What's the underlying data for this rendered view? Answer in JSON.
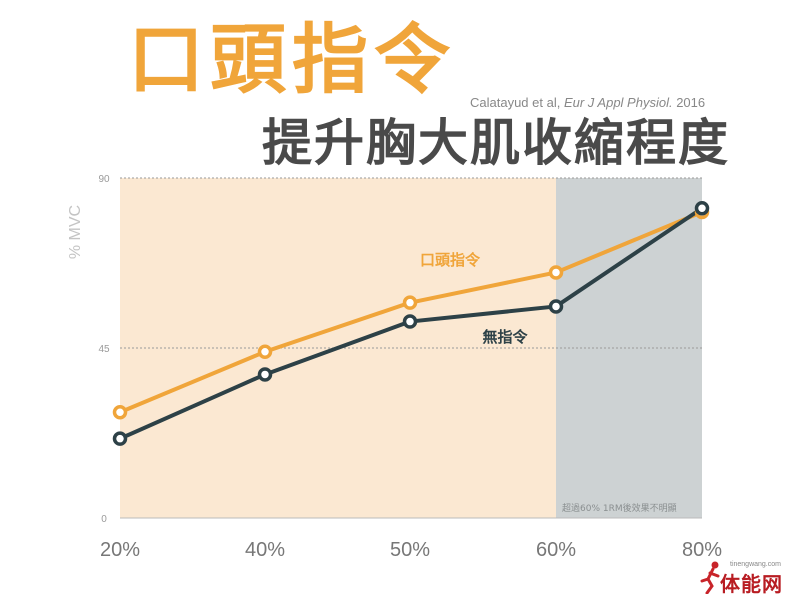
{
  "title": "口頭指令",
  "subtitle": "提升胸大肌收縮程度",
  "citation": {
    "authors": "Calatayud et al, ",
    "journal": "Eur J Appl Physiol.",
    "year": " 2016"
  },
  "shaded_note": "超過60% 1RM後效果不明顯",
  "watermark": {
    "name": "体能网",
    "url": "tinengwang.com"
  },
  "colors": {
    "verbal": "#f0a53a",
    "none": "#2d4147",
    "background_band": "#fbe8d2",
    "shaded_band": "#cdd2d3"
  },
  "chart_data": {
    "type": "line",
    "categories": [
      "20%",
      "40%",
      "50%",
      "60%",
      "80%"
    ],
    "ylabel": "% MVC",
    "yticks": [
      0,
      45,
      90
    ],
    "ylim": [
      0,
      90
    ],
    "grid": true,
    "shaded_from_category": "60%",
    "series": [
      {
        "name": "口頭指令",
        "values": [
          28,
          44,
          57,
          65,
          81
        ]
      },
      {
        "name": "無指令",
        "values": [
          21,
          38,
          52,
          56,
          82
        ]
      }
    ]
  }
}
